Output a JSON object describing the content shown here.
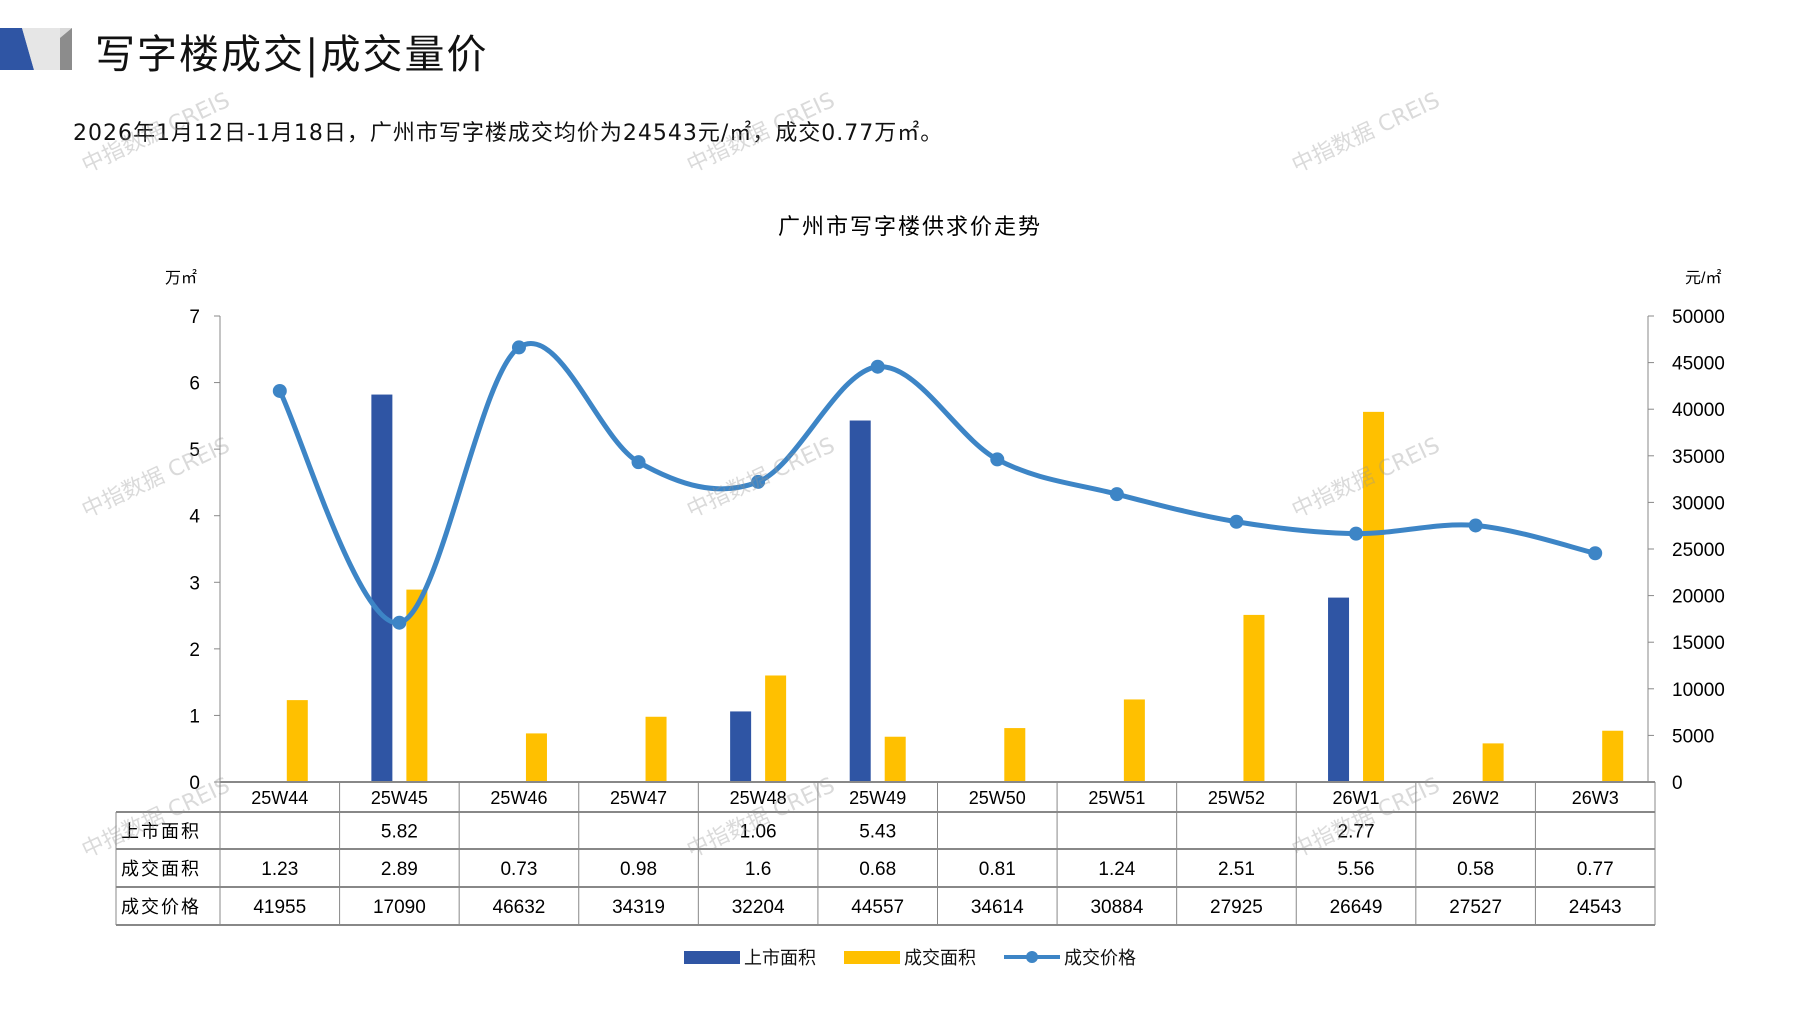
{
  "header": {
    "title": "写字楼成交|成交量价",
    "subtitle": "2026年1月12日-1月18日，广州市写字楼成交均价为24543元/㎡，成交0.77万㎡。"
  },
  "watermark": "中指数据 CREIS",
  "colors": {
    "supply": "#2F55A4",
    "deal_area": "#FFC000",
    "price": "#3D85C6"
  },
  "chart_data": {
    "type": "bar+line",
    "title": "广州市写字楼供求价走势",
    "ylabel_left": "万㎡",
    "ylabel_right": "元/㎡",
    "ylim_left": [
      0,
      7
    ],
    "yticks_left": [
      0,
      1,
      2,
      3,
      4,
      5,
      6,
      7
    ],
    "ylim_right": [
      0,
      50000
    ],
    "yticks_right": [
      0,
      5000,
      10000,
      15000,
      20000,
      25000,
      30000,
      35000,
      40000,
      45000,
      50000
    ],
    "categories": [
      "25W44",
      "25W45",
      "25W46",
      "25W47",
      "25W48",
      "25W49",
      "25W50",
      "25W51",
      "25W52",
      "26W1",
      "26W2",
      "26W3"
    ],
    "series": [
      {
        "name": "上市面积",
        "type": "bar",
        "axis": "left",
        "values": [
          null,
          5.82,
          null,
          null,
          1.06,
          5.43,
          null,
          null,
          null,
          2.77,
          null,
          null
        ]
      },
      {
        "name": "成交面积",
        "type": "bar",
        "axis": "left",
        "values": [
          1.23,
          2.89,
          0.73,
          0.98,
          1.6,
          0.68,
          0.81,
          1.24,
          2.51,
          5.56,
          0.58,
          0.77
        ]
      },
      {
        "name": "成交价格",
        "type": "line",
        "axis": "right",
        "values": [
          41955,
          17090,
          46632,
          34319,
          32204,
          44557,
          34614,
          30884,
          27925,
          26649,
          27527,
          24543
        ]
      }
    ],
    "table_display": [
      [
        "",
        "5.82",
        "",
        "",
        "1.06",
        "5.43",
        "",
        "",
        "",
        "2.77",
        "",
        ""
      ],
      [
        "1.23",
        "2.89",
        "0.73",
        "0.98",
        "1.6",
        "0.68",
        "0.81",
        "1.24",
        "2.51",
        "5.56",
        "0.58",
        "0.77"
      ],
      [
        "41955",
        "17090",
        "46632",
        "34319",
        "32204",
        "44557",
        "34614",
        "30884",
        "27925",
        "26649",
        "27527",
        "24543"
      ]
    ],
    "legend_position": "bottom"
  }
}
